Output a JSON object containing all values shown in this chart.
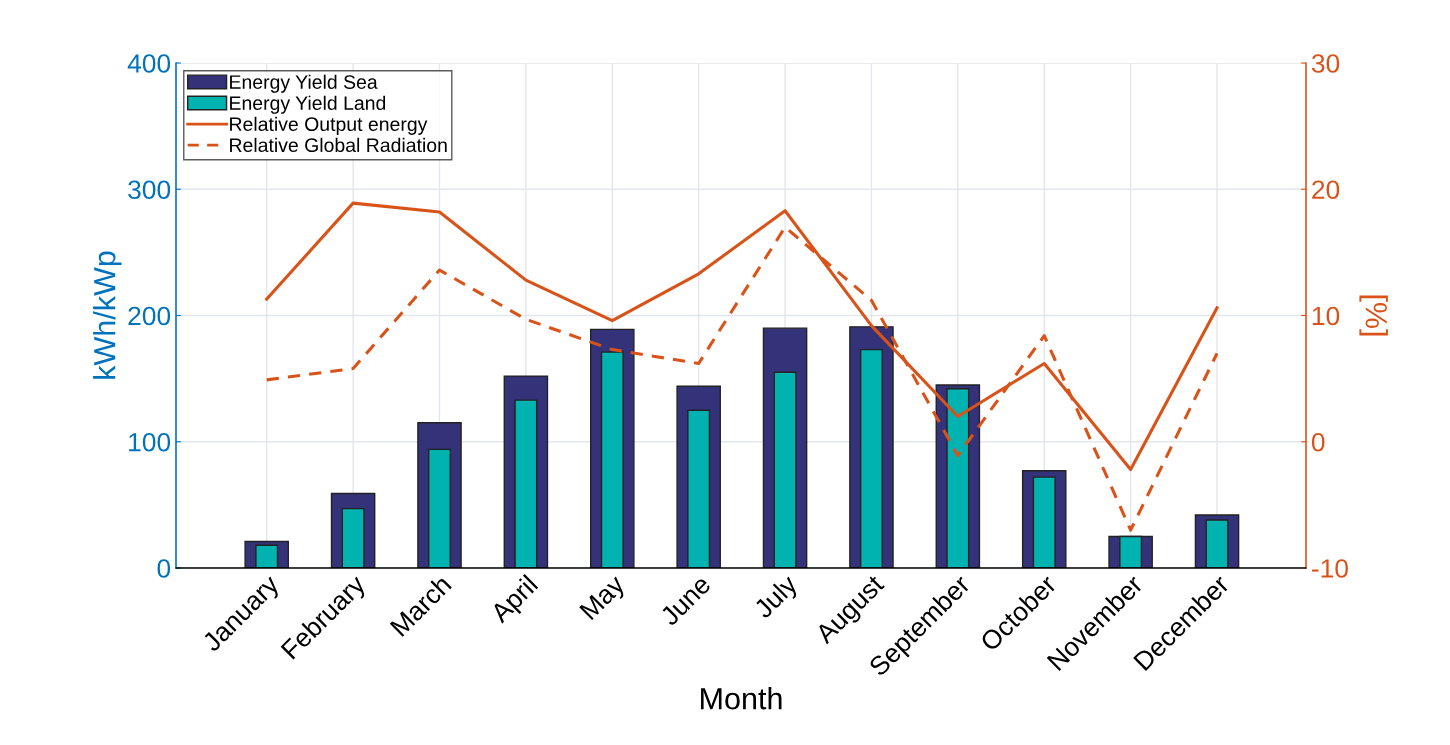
{
  "chart_data": {
    "type": "bar",
    "xlabel": "Month",
    "ylabel": "kWh/kWp",
    "y2label": "[%]",
    "categories": [
      "January",
      "February",
      "March",
      "April",
      "May",
      "June",
      "July",
      "August",
      "September",
      "October",
      "November",
      "December"
    ],
    "series": [
      {
        "name": "Energy Yield Sea",
        "color": "#34337a",
        "values": [
          21,
          59,
          115,
          152,
          189,
          144,
          190,
          191,
          145,
          77,
          25,
          42
        ]
      },
      {
        "name": "Energy Yield Land",
        "color": "#00b2b0",
        "values": [
          18,
          47,
          94,
          133,
          171,
          125,
          155,
          173,
          142,
          72,
          25,
          38
        ]
      },
      {
        "name": "Relative Output energy",
        "type": "line",
        "axis": "y2",
        "line_style": "solid",
        "color": "#d95319",
        "values": [
          11.3,
          18.9,
          18.2,
          12.8,
          9.6,
          13.3,
          18.3,
          9.2,
          2.0,
          6.2,
          -2.2,
          10.6
        ]
      },
      {
        "name": "Relative Global Radiation",
        "type": "line",
        "axis": "y2",
        "line_style": "dashed",
        "color": "#d95319",
        "values": [
          4.9,
          5.8,
          13.6,
          9.7,
          7.3,
          6.2,
          17.0,
          11.2,
          -1.1,
          8.4,
          -7.0,
          7.0
        ]
      }
    ],
    "ylim": [
      0,
      400
    ],
    "yticks": [
      0,
      100,
      200,
      300,
      400
    ],
    "y2lim": [
      -10,
      30
    ],
    "y2ticks": [
      -10,
      0,
      10,
      20,
      30
    ],
    "grid": true,
    "legend": "top left"
  }
}
